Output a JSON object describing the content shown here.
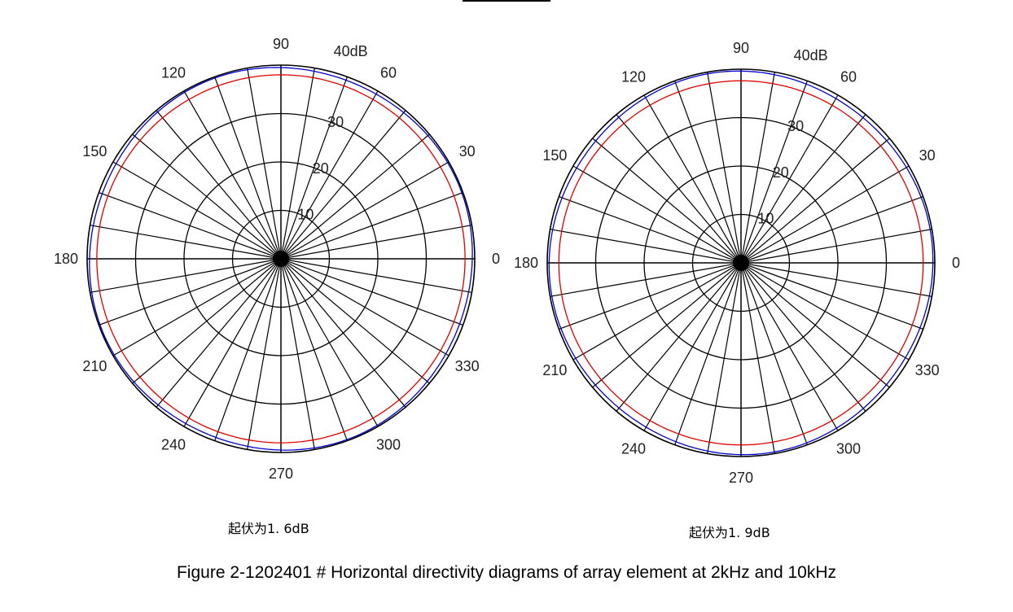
{
  "chart_data": [
    {
      "type": "polar",
      "angle_ticks": [
        "0",
        "30",
        "60",
        "90",
        "120",
        "150",
        "180",
        "210",
        "240",
        "270",
        "300",
        "330"
      ],
      "radial_ticks": [
        "10",
        "20",
        "30"
      ],
      "rmax_label": "40dB",
      "rlim": [
        0,
        40
      ],
      "spoke_step_deg": 10,
      "ring_step_db": 10,
      "grid": true,
      "series": [
        {
          "color": "#0000cc",
          "r": 39.5
        },
        {
          "color": "#e00000",
          "r": 38.0
        }
      ],
      "note": "起伏为1. 6dB"
    },
    {
      "type": "polar",
      "angle_ticks": [
        "0",
        "30",
        "60",
        "90",
        "120",
        "150",
        "180",
        "210",
        "240",
        "270",
        "300",
        "330"
      ],
      "radial_ticks": [
        "10",
        "20",
        "30"
      ],
      "rmax_label": "40dB",
      "rlim": [
        0,
        40
      ],
      "spoke_step_deg": 10,
      "ring_step_db": 10,
      "grid": true,
      "series": [
        {
          "color": "#0000cc",
          "r": 39.4
        },
        {
          "color": "#e00000",
          "r": 37.6
        }
      ],
      "note": "起伏为1. 9dB"
    }
  ],
  "caption": "Figure 2-1202401 # Horizontal directivity diagrams of array element  at 2kHz and 10kHz"
}
